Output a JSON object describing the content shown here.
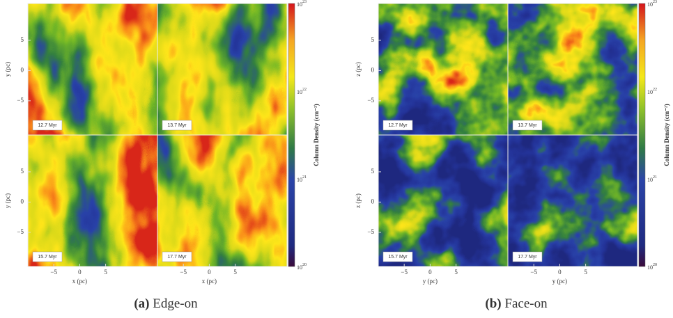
{
  "figures": [
    {
      "label": "(a)",
      "caption": "Edge-on",
      "xlabel": "x (pc)",
      "ylabel": "y (pc)",
      "xticks": [
        "−5",
        "0",
        "5"
      ],
      "yticks": [
        "5",
        "0",
        "−5"
      ],
      "panels": [
        "12.7 Myr",
        "13.7 Myr",
        "15.7 Myr",
        "17.7 Myr"
      ],
      "colorbar": {
        "label": "Column Density (cm⁻²)",
        "ticks": [
          {
            "base": "10",
            "exp": "23"
          },
          {
            "base": "10",
            "exp": "22"
          },
          {
            "base": "10",
            "exp": "21"
          },
          {
            "base": "10",
            "exp": "20"
          }
        ]
      }
    },
    {
      "label": "(b)",
      "caption": "Face-on",
      "xlabel": "y (pc)",
      "ylabel": "z (pc)",
      "xticks": [
        "−5",
        "0",
        "5"
      ],
      "yticks": [
        "5",
        "0",
        "−5"
      ],
      "panels": [
        "12.7 Myr",
        "13.7 Myr",
        "15.7 Myr",
        "17.7 Myr"
      ],
      "colorbar": {
        "label": "Column Density (cm⁻²)",
        "ticks": [
          {
            "base": "10",
            "exp": "23"
          },
          {
            "base": "10",
            "exp": "22"
          },
          {
            "base": "10",
            "exp": "21"
          },
          {
            "base": "10",
            "exp": "20"
          }
        ]
      }
    }
  ]
}
